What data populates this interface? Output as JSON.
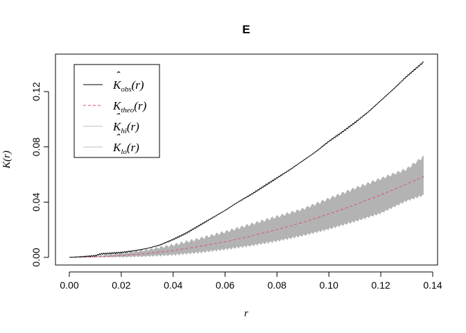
{
  "chart_data": {
    "type": "line",
    "title": "E",
    "xlabel": "r",
    "ylabel": "K(r)",
    "xlim": [
      0,
      0.14
    ],
    "ylim": [
      -0.005,
      0.142
    ],
    "xticks": [
      "0.00",
      "0.02",
      "0.04",
      "0.06",
      "0.08",
      "0.10",
      "0.12",
      "0.14"
    ],
    "yticks": [
      "0.00",
      "0.04",
      "0.08",
      "0.12"
    ],
    "legend_position": "top-left",
    "legend": [
      {
        "label": "K",
        "hat": true,
        "sub": "obs",
        "suffix": "(r)",
        "style": "solid",
        "color": "#000000"
      },
      {
        "label": "K",
        "hat": false,
        "sub": "theo",
        "suffix": "(r)",
        "style": "dashed",
        "color": "#DF536B"
      },
      {
        "label": "K",
        "hat": true,
        "sub": "hi",
        "suffix": "(r)",
        "style": "solid",
        "color": "#BEBEBE"
      },
      {
        "label": "K",
        "hat": true,
        "sub": "lo",
        "suffix": "(r)",
        "style": "solid",
        "color": "#BEBEBE"
      }
    ],
    "envelope_color": "#B3B3B3",
    "series": [
      {
        "key": "obs",
        "color": "#000000",
        "x": [
          0,
          0.005,
          0.01,
          0.012,
          0.015,
          0.02,
          0.025,
          0.03,
          0.035,
          0.04,
          0.045,
          0.05,
          0.055,
          0.06,
          0.065,
          0.07,
          0.075,
          0.08,
          0.085,
          0.09,
          0.095,
          0.1,
          0.105,
          0.11,
          0.115,
          0.12,
          0.125,
          0.13,
          0.1365
        ],
        "y": [
          0,
          0.0005,
          0.0012,
          0.0025,
          0.0028,
          0.0035,
          0.0048,
          0.0065,
          0.009,
          0.013,
          0.0175,
          0.023,
          0.0285,
          0.034,
          0.04,
          0.0455,
          0.0515,
          0.0575,
          0.0635,
          0.07,
          0.0765,
          0.084,
          0.0905,
          0.0975,
          0.105,
          0.1135,
          0.122,
          0.131,
          0.1415
        ]
      },
      {
        "key": "theo",
        "color": "#DF536B",
        "x": [
          0,
          0.01,
          0.02,
          0.03,
          0.04,
          0.05,
          0.06,
          0.07,
          0.08,
          0.09,
          0.1,
          0.11,
          0.12,
          0.13,
          0.1365
        ],
        "y": [
          0,
          0.0003,
          0.0013,
          0.0028,
          0.005,
          0.0079,
          0.0113,
          0.0154,
          0.0201,
          0.0254,
          0.0314,
          0.038,
          0.0452,
          0.0531,
          0.0585
        ]
      },
      {
        "key": "hi",
        "color": "#B3B3B3",
        "x": [
          0,
          0.01,
          0.02,
          0.03,
          0.04,
          0.05,
          0.06,
          0.07,
          0.08,
          0.09,
          0.1,
          0.11,
          0.12,
          0.13,
          0.1365
        ],
        "y": [
          0,
          0.0008,
          0.0028,
          0.0055,
          0.009,
          0.0135,
          0.0185,
          0.024,
          0.0295,
          0.035,
          0.0425,
          0.05,
          0.057,
          0.064,
          0.073
        ]
      },
      {
        "key": "lo",
        "color": "#B3B3B3",
        "x": [
          0,
          0.01,
          0.02,
          0.03,
          0.04,
          0.05,
          0.06,
          0.07,
          0.08,
          0.09,
          0.1,
          0.11,
          0.12,
          0.13,
          0.1365
        ],
        "y": [
          0,
          0,
          0.0002,
          0.0008,
          0.0018,
          0.0035,
          0.0058,
          0.0085,
          0.0118,
          0.0158,
          0.0205,
          0.026,
          0.032,
          0.041,
          0.045
        ]
      }
    ]
  }
}
